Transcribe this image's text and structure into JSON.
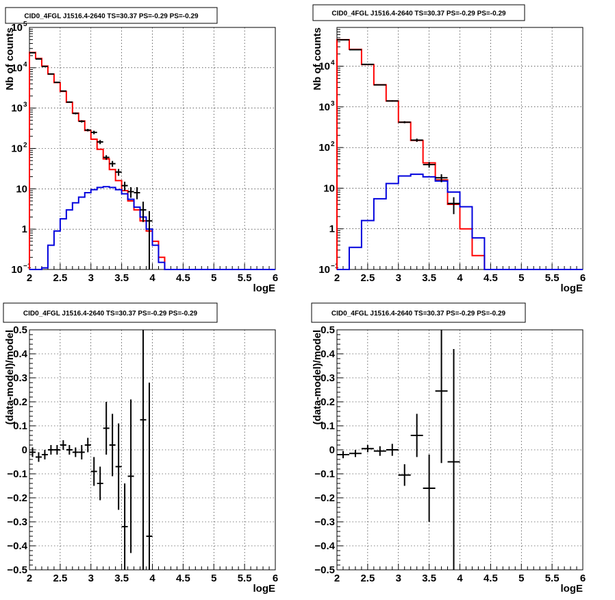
{
  "chart_data": [
    {
      "type": "histogram",
      "title": "CID0_4FGL J1516.4-2640 TS=30.37 PS=-0.29 PS=-0.29",
      "xlabel": "logE",
      "ylabel": "Nb of counts",
      "xscale": "linear",
      "yscale": "log",
      "xlim": [
        2,
        6
      ],
      "ylim": [
        0.1,
        100000
      ],
      "xticks": [
        {
          "v": 2,
          "label": "2"
        },
        {
          "v": 2.5,
          "label": "2.5"
        },
        {
          "v": 3,
          "label": "3"
        },
        {
          "v": 3.5,
          "label": "3.5"
        },
        {
          "v": 4,
          "label": "4"
        },
        {
          "v": 4.5,
          "label": "4.5"
        },
        {
          "v": 5,
          "label": "5"
        },
        {
          "v": 5.5,
          "label": "5.5"
        },
        {
          "v": 6,
          "label": "6"
        }
      ],
      "yticks": [
        {
          "v": 0.1,
          "base": "10",
          "exp": "−1"
        },
        {
          "v": 1,
          "base": "1",
          "exp": ""
        },
        {
          "v": 10,
          "base": "10",
          "exp": ""
        },
        {
          "v": 100,
          "base": "10",
          "exp": "2"
        },
        {
          "v": 1000,
          "base": "10",
          "exp": "3"
        },
        {
          "v": 10000,
          "base": "10",
          "exp": "4"
        },
        {
          "v": 100000,
          "base": "10",
          "exp": "5"
        }
      ],
      "grid": true,
      "bin_edges": [
        2.0,
        2.1,
        2.2,
        2.3,
        2.4,
        2.5,
        2.6,
        2.7,
        2.8,
        2.9,
        3.0,
        3.1,
        3.2,
        3.3,
        3.4,
        3.5,
        3.6,
        3.7,
        3.8,
        3.9,
        4.0,
        4.1,
        4.2,
        4.3,
        4.4,
        4.5,
        4.6,
        4.7,
        4.8,
        4.9,
        5.0,
        5.1,
        5.2,
        5.3,
        5.4,
        5.5,
        5.6,
        5.7,
        5.8,
        5.9,
        6.0
      ],
      "series": [
        {
          "color": "#ff0000",
          "style": "step",
          "values": [
            24000,
            17000,
            11000,
            7000,
            4300,
            2600,
            1400,
            750,
            480,
            280,
            170,
            95,
            55,
            30,
            16,
            9,
            5,
            3,
            1.6,
            0.9,
            0.5,
            0.2,
            0.1,
            0.1,
            0.1,
            0.1,
            0.1,
            0.1,
            0.1,
            0.1,
            0.1,
            0.1,
            0.1,
            0.1,
            0.1,
            0.1,
            0.1,
            0.1,
            0.1,
            0.1
          ]
        },
        {
          "color": "#0000dd",
          "style": "step",
          "values": [
            0.1,
            0.1,
            0.11,
            0.4,
            0.9,
            1.8,
            3.0,
            4.5,
            6.2,
            8.0,
            9.5,
            10.8,
            11.3,
            10.8,
            9.5,
            7.5,
            5.5,
            3.5,
            2.0,
            1.0,
            0.4,
            0.15,
            0.1,
            0.1,
            0.1,
            0.1,
            0.1,
            0.1,
            0.1,
            0.1,
            0.1,
            0.1,
            0.1,
            0.1,
            0.1,
            0.1,
            0.1,
            0.1,
            0.1,
            0.1
          ]
        }
      ],
      "data_points": [
        {
          "x": 2.05,
          "y": 23500,
          "ylo": 23200,
          "yhi": 23800,
          "xerr": 0.05
        },
        {
          "x": 2.15,
          "y": 16500,
          "ylo": 16250,
          "yhi": 16750,
          "xerr": 0.05
        },
        {
          "x": 2.25,
          "y": 10800,
          "ylo": 10600,
          "yhi": 11000,
          "xerr": 0.05
        },
        {
          "x": 2.35,
          "y": 7000,
          "ylo": 6850,
          "yhi": 7150,
          "xerr": 0.05
        },
        {
          "x": 2.45,
          "y": 4350,
          "ylo": 4250,
          "yhi": 4450,
          "xerr": 0.05
        },
        {
          "x": 2.55,
          "y": 2650,
          "ylo": 2570,
          "yhi": 2730,
          "xerr": 0.05
        },
        {
          "x": 2.65,
          "y": 1410,
          "ylo": 1350,
          "yhi": 1470,
          "xerr": 0.05
        },
        {
          "x": 2.75,
          "y": 740,
          "ylo": 700,
          "yhi": 780,
          "xerr": 0.05
        },
        {
          "x": 2.85,
          "y": 470,
          "ylo": 440,
          "yhi": 500,
          "xerr": 0.05
        },
        {
          "x": 2.95,
          "y": 285,
          "ylo": 265,
          "yhi": 305,
          "xerr": 0.05
        },
        {
          "x": 3.05,
          "y": 250,
          "ylo": 225,
          "yhi": 275,
          "xerr": 0.05
        },
        {
          "x": 3.15,
          "y": 145,
          "ylo": 128,
          "yhi": 162,
          "xerr": 0.05
        },
        {
          "x": 3.25,
          "y": 60,
          "ylo": 52,
          "yhi": 68,
          "xerr": 0.05
        },
        {
          "x": 3.35,
          "y": 42,
          "ylo": 35,
          "yhi": 49,
          "xerr": 0.05
        },
        {
          "x": 3.45,
          "y": 26,
          "ylo": 21,
          "yhi": 31,
          "xerr": 0.05
        },
        {
          "x": 3.55,
          "y": 12,
          "ylo": 9,
          "yhi": 15,
          "xerr": 0.05
        },
        {
          "x": 3.65,
          "y": 8.5,
          "ylo": 6,
          "yhi": 11,
          "xerr": 0.05
        },
        {
          "x": 3.75,
          "y": 8,
          "ylo": 5.5,
          "yhi": 11,
          "xerr": 0.05
        },
        {
          "x": 3.85,
          "y": 3,
          "ylo": 1.5,
          "yhi": 4.8,
          "xerr": 0.05
        },
        {
          "x": 3.95,
          "y": 1.6,
          "ylo": 0.1,
          "yhi": 2.8,
          "xerr": 0.05
        }
      ]
    },
    {
      "type": "histogram",
      "title": "CID0_4FGL J1516.4-2640 TS=30.37 PS=-0.29 PS=-0.29",
      "xlabel": "logE",
      "ylabel": "Nb of counts",
      "xscale": "linear",
      "yscale": "log",
      "xlim": [
        2,
        6
      ],
      "ylim": [
        0.1,
        90000
      ],
      "xticks": [
        {
          "v": 2,
          "label": "2"
        },
        {
          "v": 2.5,
          "label": "2.5"
        },
        {
          "v": 3,
          "label": "3"
        },
        {
          "v": 3.5,
          "label": "3.5"
        },
        {
          "v": 4,
          "label": "4"
        },
        {
          "v": 4.5,
          "label": "4.5"
        },
        {
          "v": 5,
          "label": "5"
        },
        {
          "v": 5.5,
          "label": "5.5"
        },
        {
          "v": 6,
          "label": "6"
        }
      ],
      "yticks": [
        {
          "v": 0.1,
          "base": "10",
          "exp": "−1"
        },
        {
          "v": 1,
          "base": "1",
          "exp": ""
        },
        {
          "v": 10,
          "base": "10",
          "exp": ""
        },
        {
          "v": 100,
          "base": "10",
          "exp": "2"
        },
        {
          "v": 1000,
          "base": "10",
          "exp": "3"
        },
        {
          "v": 10000,
          "base": "10",
          "exp": "4"
        }
      ],
      "grid": true,
      "bin_edges": [
        2.0,
        2.2,
        2.4,
        2.6,
        2.8,
        3.0,
        3.2,
        3.4,
        3.6,
        3.8,
        4.0,
        4.2,
        4.4,
        4.6,
        4.8,
        5.0,
        5.2,
        5.4,
        5.6,
        5.8,
        6.0
      ],
      "series": [
        {
          "color": "#ff0000",
          "style": "step",
          "values": [
            45000,
            26000,
            11000,
            3500,
            1400,
            420,
            150,
            42,
            16,
            4,
            1.0,
            0.22,
            0.1,
            0.1,
            0.1,
            0.1,
            0.1,
            0.1,
            0.1,
            0.1
          ]
        },
        {
          "color": "#0000dd",
          "style": "step",
          "values": [
            0.1,
            0.35,
            1.6,
            5.5,
            13,
            20,
            22,
            19,
            15,
            8,
            3.5,
            0.6,
            0.1,
            0.1,
            0.1,
            0.1,
            0.1,
            0.1,
            0.1,
            0.1
          ]
        }
      ],
      "data_points": [
        {
          "x": 2.1,
          "y": 44500,
          "ylo": 44200,
          "yhi": 44800,
          "xerr": 0.1
        },
        {
          "x": 2.3,
          "y": 25500,
          "ylo": 25200,
          "yhi": 25800,
          "xerr": 0.1
        },
        {
          "x": 2.5,
          "y": 11100,
          "ylo": 10900,
          "yhi": 11300,
          "xerr": 0.1
        },
        {
          "x": 2.7,
          "y": 3480,
          "ylo": 3400,
          "yhi": 3560,
          "xerr": 0.1
        },
        {
          "x": 2.9,
          "y": 1400,
          "ylo": 1350,
          "yhi": 1450,
          "xerr": 0.1
        },
        {
          "x": 3.1,
          "y": 420,
          "ylo": 395,
          "yhi": 445,
          "xerr": 0.1
        },
        {
          "x": 3.3,
          "y": 152,
          "ylo": 138,
          "yhi": 166,
          "xerr": 0.1
        },
        {
          "x": 3.5,
          "y": 38,
          "ylo": 32,
          "yhi": 44,
          "xerr": 0.1
        },
        {
          "x": 3.7,
          "y": 18,
          "ylo": 14,
          "yhi": 22,
          "xerr": 0.1
        },
        {
          "x": 3.9,
          "y": 4.2,
          "ylo": 2.3,
          "yhi": 6.0,
          "xerr": 0.1
        }
      ]
    },
    {
      "type": "scatter",
      "title": "CID0_4FGL J1516.4-2640 TS=30.37 PS=-0.29 PS=-0.29",
      "xlabel": "logE",
      "ylabel": "(data-model)/model",
      "xscale": "linear",
      "yscale": "linear",
      "xlim": [
        2,
        6
      ],
      "ylim": [
        -0.5,
        0.5
      ],
      "xticks": [
        {
          "v": 2,
          "label": "2"
        },
        {
          "v": 2.5,
          "label": "2.5"
        },
        {
          "v": 3,
          "label": "3"
        },
        {
          "v": 3.5,
          "label": "3.5"
        },
        {
          "v": 4,
          "label": "4"
        },
        {
          "v": 4.5,
          "label": "4.5"
        },
        {
          "v": 5,
          "label": "5"
        },
        {
          "v": 5.5,
          "label": "5.5"
        },
        {
          "v": 6,
          "label": "6"
        }
      ],
      "yticks": [
        {
          "v": -0.5,
          "label": "−0.5"
        },
        {
          "v": -0.4,
          "label": "−0.4"
        },
        {
          "v": -0.3,
          "label": "−0.3"
        },
        {
          "v": -0.2,
          "label": "−0.2"
        },
        {
          "v": -0.1,
          "label": "−0.1"
        },
        {
          "v": 0,
          "label": "0"
        },
        {
          "v": 0.1,
          "label": "0.1"
        },
        {
          "v": 0.2,
          "label": "0.2"
        },
        {
          "v": 0.3,
          "label": "0.3"
        },
        {
          "v": 0.4,
          "label": "0.4"
        },
        {
          "v": 0.5,
          "label": "0.5"
        }
      ],
      "grid": true,
      "data_points": [
        {
          "x": 2.05,
          "y": -0.01,
          "ylo": -0.03,
          "yhi": 0.01,
          "xerr": 0.05
        },
        {
          "x": 2.15,
          "y": -0.03,
          "ylo": -0.05,
          "yhi": -0.01,
          "xerr": 0.05
        },
        {
          "x": 2.25,
          "y": -0.02,
          "ylo": -0.04,
          "yhi": 0.0,
          "xerr": 0.05
        },
        {
          "x": 2.35,
          "y": 0.0,
          "ylo": -0.02,
          "yhi": 0.02,
          "xerr": 0.05
        },
        {
          "x": 2.45,
          "y": 0.0,
          "ylo": -0.02,
          "yhi": 0.02,
          "xerr": 0.05
        },
        {
          "x": 2.55,
          "y": 0.02,
          "ylo": 0.0,
          "yhi": 0.04,
          "xerr": 0.05
        },
        {
          "x": 2.65,
          "y": 0.0,
          "ylo": -0.02,
          "yhi": 0.02,
          "xerr": 0.05
        },
        {
          "x": 2.75,
          "y": -0.01,
          "ylo": -0.03,
          "yhi": 0.01,
          "xerr": 0.05
        },
        {
          "x": 2.85,
          "y": -0.01,
          "ylo": -0.04,
          "yhi": 0.02,
          "xerr": 0.05
        },
        {
          "x": 2.95,
          "y": 0.02,
          "ylo": -0.01,
          "yhi": 0.05,
          "xerr": 0.05
        },
        {
          "x": 3.05,
          "y": -0.09,
          "ylo": -0.15,
          "yhi": -0.03,
          "xerr": 0.05
        },
        {
          "x": 3.15,
          "y": -0.14,
          "ylo": -0.21,
          "yhi": -0.07,
          "xerr": 0.05
        },
        {
          "x": 3.25,
          "y": 0.09,
          "ylo": -0.02,
          "yhi": 0.2,
          "xerr": 0.05
        },
        {
          "x": 3.35,
          "y": 0.02,
          "ylo": -0.11,
          "yhi": 0.15,
          "xerr": 0.05
        },
        {
          "x": 3.45,
          "y": -0.07,
          "ylo": -0.25,
          "yhi": 0.11,
          "xerr": 0.05
        },
        {
          "x": 3.55,
          "y": -0.32,
          "ylo": -0.5,
          "yhi": -0.14,
          "xerr": 0.05
        },
        {
          "x": 3.65,
          "y": -0.11,
          "ylo": -0.43,
          "yhi": 0.21,
          "xerr": 0.05
        },
        {
          "x": 3.85,
          "y": 0.125,
          "ylo": -0.5,
          "yhi": 0.5,
          "xerr": 0.05
        },
        {
          "x": 3.95,
          "y": -0.36,
          "ylo": -0.5,
          "yhi": 0.28,
          "xerr": 0.05
        }
      ]
    },
    {
      "type": "scatter",
      "title": "CID0_4FGL J1516.4-2640 TS=30.37 PS=-0.29 PS=-0.29",
      "xlabel": "logE",
      "ylabel": "(data-model)/model",
      "xscale": "linear",
      "yscale": "linear",
      "xlim": [
        2,
        6
      ],
      "ylim": [
        -0.5,
        0.5
      ],
      "xticks": [
        {
          "v": 2,
          "label": "2"
        },
        {
          "v": 2.5,
          "label": "2.5"
        },
        {
          "v": 3,
          "label": "3"
        },
        {
          "v": 3.5,
          "label": "3.5"
        },
        {
          "v": 4,
          "label": "4"
        },
        {
          "v": 4.5,
          "label": "4.5"
        },
        {
          "v": 5,
          "label": "5"
        },
        {
          "v": 5.5,
          "label": "5.5"
        },
        {
          "v": 6,
          "label": "6"
        }
      ],
      "yticks": [
        {
          "v": -0.5,
          "label": "−0.5"
        },
        {
          "v": -0.4,
          "label": "−0.4"
        },
        {
          "v": -0.3,
          "label": "−0.3"
        },
        {
          "v": -0.2,
          "label": "−0.2"
        },
        {
          "v": -0.1,
          "label": "−0.1"
        },
        {
          "v": 0,
          "label": "0"
        },
        {
          "v": 0.1,
          "label": "0.1"
        },
        {
          "v": 0.2,
          "label": "0.2"
        },
        {
          "v": 0.3,
          "label": "0.3"
        },
        {
          "v": 0.4,
          "label": "0.4"
        },
        {
          "v": 0.5,
          "label": "0.5"
        }
      ],
      "grid": true,
      "data_points": [
        {
          "x": 2.1,
          "y": -0.02,
          "ylo": -0.035,
          "yhi": -0.005,
          "xerr": 0.1
        },
        {
          "x": 2.3,
          "y": -0.015,
          "ylo": -0.03,
          "yhi": 0.0,
          "xerr": 0.1
        },
        {
          "x": 2.5,
          "y": 0.005,
          "ylo": -0.01,
          "yhi": 0.02,
          "xerr": 0.1
        },
        {
          "x": 2.7,
          "y": -0.005,
          "ylo": -0.025,
          "yhi": 0.015,
          "xerr": 0.1
        },
        {
          "x": 2.9,
          "y": 0.0,
          "ylo": -0.025,
          "yhi": 0.025,
          "xerr": 0.1
        },
        {
          "x": 3.1,
          "y": -0.105,
          "ylo": -0.15,
          "yhi": -0.06,
          "xerr": 0.1
        },
        {
          "x": 3.3,
          "y": 0.06,
          "ylo": -0.03,
          "yhi": 0.15,
          "xerr": 0.1
        },
        {
          "x": 3.5,
          "y": -0.16,
          "ylo": -0.3,
          "yhi": -0.02,
          "xerr": 0.1
        },
        {
          "x": 3.7,
          "y": 0.245,
          "ylo": -0.055,
          "yhi": 0.5,
          "xerr": 0.1
        },
        {
          "x": 3.9,
          "y": -0.05,
          "ylo": -0.5,
          "yhi": 0.42,
          "xerr": 0.1
        }
      ]
    }
  ]
}
